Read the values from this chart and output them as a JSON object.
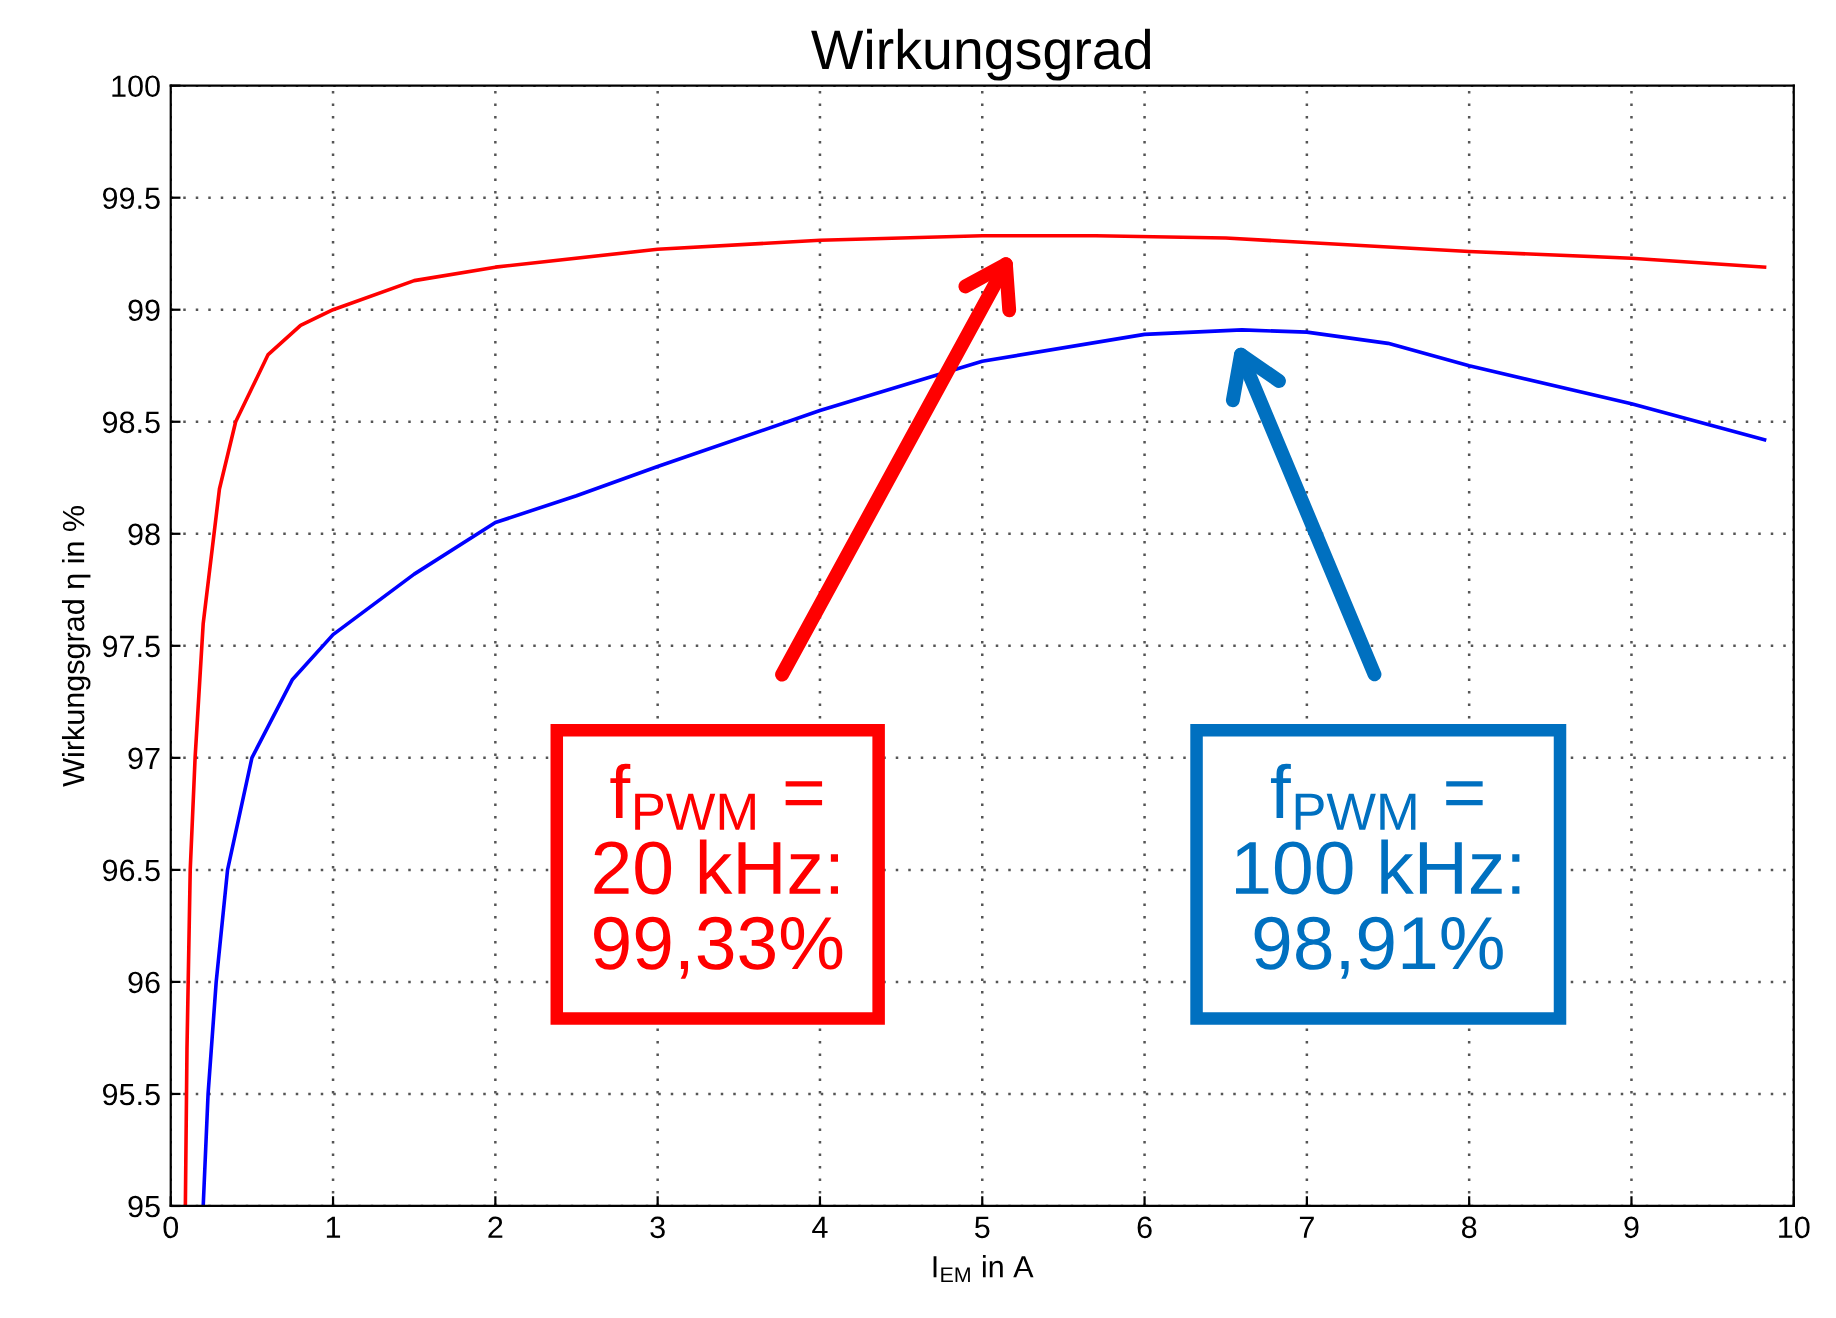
{
  "chart_data": {
    "type": "line",
    "title": "Wirkungsgrad",
    "xlabel": "I$_{EM}$ in A",
    "ylabel": "Wirkungsgrad η in %",
    "xlim": [
      0,
      10
    ],
    "ylim": [
      95,
      100
    ],
    "xticks": [
      0,
      1,
      2,
      3,
      4,
      5,
      6,
      7,
      8,
      9,
      10
    ],
    "yticks": [
      95,
      95.5,
      96,
      96.5,
      97,
      97.5,
      98,
      98.5,
      99,
      99.5,
      100
    ],
    "grid": true,
    "series": [
      {
        "color": "#ff0000",
        "x": [
          0.09,
          0.1,
          0.12,
          0.15,
          0.2,
          0.3,
          0.4,
          0.6,
          0.8,
          1,
          1.5,
          2,
          3,
          4,
          5,
          5.7,
          6.5,
          7,
          8,
          9,
          9.82
        ],
        "values": [
          95,
          95.7,
          96.5,
          97.0,
          97.6,
          98.2,
          98.5,
          98.8,
          98.93,
          99.0,
          99.13,
          99.19,
          99.27,
          99.31,
          99.33,
          99.33,
          99.32,
          99.3,
          99.26,
          99.23,
          99.19
        ]
      },
      {
        "color": "#0000ff",
        "x": [
          0.2,
          0.23,
          0.28,
          0.35,
          0.5,
          0.75,
          1,
          1.5,
          2,
          2.5,
          3,
          4,
          5,
          6,
          6.6,
          7,
          7.5,
          8,
          9,
          9.82
        ],
        "values": [
          95,
          95.5,
          96,
          96.5,
          97,
          97.35,
          97.55,
          97.82,
          98.05,
          98.17,
          98.3,
          98.55,
          98.77,
          98.89,
          98.91,
          98.9,
          98.85,
          98.75,
          98.58,
          98.42
        ]
      }
    ],
    "annotations": [
      "f$_{PWM}$ =\n20 kHz:\n99,33%",
      "f$_{PWM}$ =\n100 kHz:\n98,91%"
    ]
  }
}
